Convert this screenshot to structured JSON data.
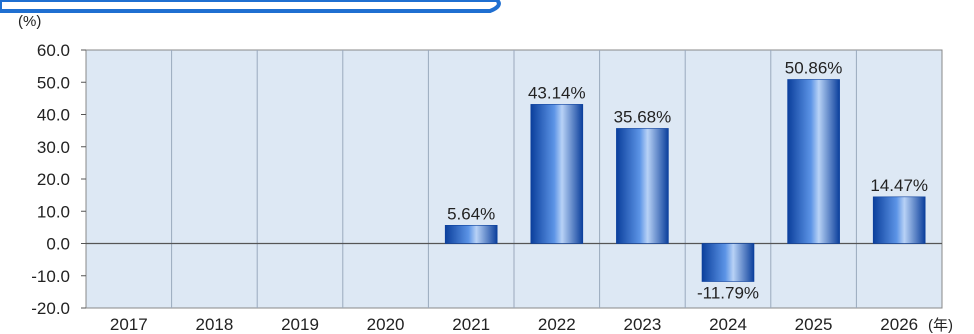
{
  "chart_data": {
    "type": "bar",
    "title": "",
    "xlabel": "",
    "ylabel": "",
    "y_unit_label": "(%)",
    "x_unit_label": "(年)",
    "categories": [
      "2017",
      "2018",
      "2019",
      "2020",
      "2021",
      "2022",
      "2023",
      "2024",
      "2025",
      "2026"
    ],
    "values": [
      null,
      null,
      null,
      null,
      5.64,
      43.14,
      35.68,
      -11.79,
      50.86,
      14.47
    ],
    "data_labels": [
      "",
      "",
      "",
      "",
      "5.64%",
      "43.14%",
      "35.68%",
      "-11.79%",
      "50.86%",
      "14.47%"
    ],
    "ylim": [
      -20,
      60
    ],
    "yticks": [
      60,
      50,
      40,
      30,
      20,
      10,
      0,
      -10,
      -20
    ],
    "ytick_labels": [
      "60.0",
      "50.0",
      "40.0",
      "30.0",
      "20.0",
      "10.0",
      "0.0",
      "-10.0",
      "-20.0"
    ],
    "grid": "vertical",
    "legend": "none",
    "colors": {
      "plot_background": "#dde8f4",
      "bar_edge": "#0b3f9c",
      "bar_mid": "#5c94e6",
      "bar_light": "#b8d2f6",
      "axis": "#555555",
      "grid": "#9aa9bd",
      "header_bar": "#1f6fd1"
    }
  }
}
